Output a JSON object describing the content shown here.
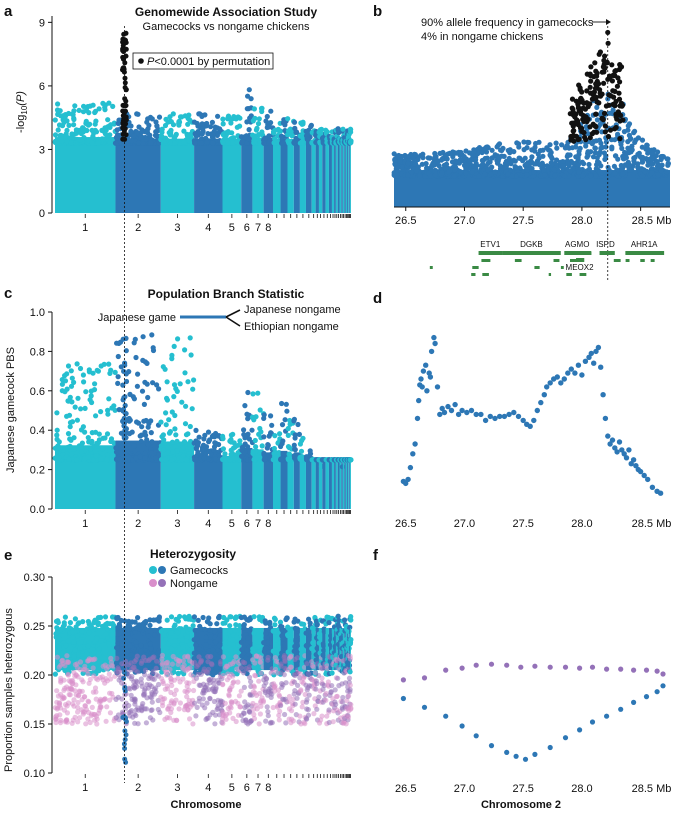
{
  "figure": {
    "panel_labels": [
      "a",
      "b",
      "c",
      "d",
      "e",
      "f"
    ],
    "colors": {
      "gamecock_dark": "#2d77b5",
      "gamecock_light": "#25bfd0",
      "nongame_pink": "#d98fcb",
      "nongame_purple": "#9471b8",
      "sig": "#111111",
      "gene": "#3a8a44"
    }
  },
  "chart_data": [
    {
      "id": "a",
      "type": "scatter",
      "title": "Genomewide Association Study",
      "subtitle": "Gamecocks vs nongame chickens",
      "ylabel": "-log10(P)",
      "ylabel_parts": [
        "-log",
        "10",
        "(P)"
      ],
      "yticks": [
        0,
        3,
        6,
        9
      ],
      "ylim": [
        0,
        9.3
      ],
      "xticks": [
        "1",
        "2",
        "3",
        "4",
        "5",
        "6",
        "7",
        "8"
      ],
      "legend": "P<0.0001 by permutation",
      "legend_parts": [
        "P",
        "<0.0001 by permutation"
      ],
      "chromosome_peaks": [
        5.2,
        4.7,
        4.7,
        4.7,
        4.7,
        6.0,
        5.0,
        4.9,
        4.8,
        4.6,
        4.5,
        4.4,
        4.3,
        4.2,
        4.0
      ],
      "max_value": 8.5,
      "highlight_chromosome": "2"
    },
    {
      "id": "b",
      "type": "scatter",
      "annotation_lines": [
        "90% allele frequency in gamecocks",
        "4% in nongame chickens"
      ],
      "xticks": [
        26.5,
        27.0,
        27.5,
        28.0,
        28.5
      ],
      "xunit": "Mb",
      "xlim": [
        26.4,
        28.75
      ],
      "ylim": [
        0,
        9.3
      ],
      "peak_position": 28.22,
      "peak_value": 8.5,
      "genes": [
        "ETV1",
        "DGKB",
        "AGMO",
        "MEOX2",
        "ISPD",
        "AHR1A"
      ]
    },
    {
      "id": "c",
      "type": "scatter",
      "title": "Population Branch Statistic",
      "ylabel": "Japanese gamecock PBS",
      "yticks": [
        0.0,
        0.2,
        0.4,
        0.6,
        0.8,
        1.0
      ],
      "ylim": [
        0,
        1.0
      ],
      "xticks": [
        "1",
        "2",
        "3",
        "4",
        "5",
        "6",
        "7",
        "8"
      ],
      "tree_labels": [
        "Japanese game",
        "Japanese nongame",
        "Ethiopian nongame"
      ],
      "chromosome_peaks": [
        0.74,
        0.9,
        0.87,
        0.4,
        0.38,
        0.65,
        0.6,
        0.5,
        0.4,
        0.55,
        0.45,
        0.5,
        0.36,
        0.3,
        0.25
      ]
    },
    {
      "id": "d",
      "type": "scatter",
      "xticks": [
        26.5,
        27.0,
        27.5,
        28.0,
        28.5
      ],
      "xunit": "Mb",
      "xlim": [
        26.4,
        28.75
      ],
      "ylim": [
        0,
        1.0
      ],
      "points": [
        [
          26.48,
          0.14
        ],
        [
          26.5,
          0.13
        ],
        [
          26.52,
          0.15
        ],
        [
          26.54,
          0.21
        ],
        [
          26.56,
          0.28
        ],
        [
          26.58,
          0.33
        ],
        [
          26.6,
          0.46
        ],
        [
          26.61,
          0.55
        ],
        [
          26.62,
          0.63
        ],
        [
          26.63,
          0.66
        ],
        [
          26.64,
          0.62
        ],
        [
          26.65,
          0.7
        ],
        [
          26.67,
          0.73
        ],
        [
          26.68,
          0.6
        ],
        [
          26.7,
          0.69
        ],
        [
          26.71,
          0.67
        ],
        [
          26.72,
          0.8
        ],
        [
          26.74,
          0.87
        ],
        [
          26.75,
          0.84
        ],
        [
          26.77,
          0.62
        ],
        [
          26.79,
          0.48
        ],
        [
          26.81,
          0.51
        ],
        [
          26.83,
          0.49
        ],
        [
          26.86,
          0.52
        ],
        [
          26.89,
          0.5
        ],
        [
          26.92,
          0.53
        ],
        [
          26.95,
          0.48
        ],
        [
          26.98,
          0.5
        ],
        [
          27.02,
          0.49
        ],
        [
          27.06,
          0.5
        ],
        [
          27.1,
          0.48
        ],
        [
          27.14,
          0.48
        ],
        [
          27.18,
          0.45
        ],
        [
          27.22,
          0.47
        ],
        [
          27.26,
          0.46
        ],
        [
          27.3,
          0.47
        ],
        [
          27.34,
          0.47
        ],
        [
          27.38,
          0.48
        ],
        [
          27.42,
          0.49
        ],
        [
          27.46,
          0.47
        ],
        [
          27.5,
          0.45
        ],
        [
          27.53,
          0.43
        ],
        [
          27.56,
          0.42
        ],
        [
          27.59,
          0.45
        ],
        [
          27.62,
          0.5
        ],
        [
          27.65,
          0.54
        ],
        [
          27.68,
          0.58
        ],
        [
          27.7,
          0.62
        ],
        [
          27.73,
          0.64
        ],
        [
          27.76,
          0.66
        ],
        [
          27.79,
          0.67
        ],
        [
          27.82,
          0.64
        ],
        [
          27.85,
          0.66
        ],
        [
          27.88,
          0.69
        ],
        [
          27.91,
          0.71
        ],
        [
          27.94,
          0.69
        ],
        [
          27.97,
          0.73
        ],
        [
          28.0,
          0.68
        ],
        [
          28.03,
          0.75
        ],
        [
          28.06,
          0.77
        ],
        [
          28.08,
          0.79
        ],
        [
          28.1,
          0.74
        ],
        [
          28.12,
          0.8
        ],
        [
          28.14,
          0.82
        ],
        [
          28.16,
          0.72
        ],
        [
          28.18,
          0.58
        ],
        [
          28.2,
          0.46
        ],
        [
          28.22,
          0.37
        ],
        [
          28.24,
          0.33
        ],
        [
          28.26,
          0.35
        ],
        [
          28.28,
          0.31
        ],
        [
          28.3,
          0.29
        ],
        [
          28.32,
          0.34
        ],
        [
          28.34,
          0.3
        ],
        [
          28.36,
          0.28
        ],
        [
          28.38,
          0.26
        ],
        [
          28.4,
          0.3
        ],
        [
          28.42,
          0.23
        ],
        [
          28.44,
          0.25
        ],
        [
          28.46,
          0.22
        ],
        [
          28.48,
          0.2
        ],
        [
          28.5,
          0.19
        ],
        [
          28.53,
          0.17
        ],
        [
          28.56,
          0.15
        ],
        [
          28.6,
          0.11
        ],
        [
          28.64,
          0.09
        ],
        [
          28.67,
          0.08
        ]
      ]
    },
    {
      "id": "e",
      "type": "scatter",
      "title": "Heterozygosity",
      "legend": [
        "Gamecocks",
        "Nongame"
      ],
      "ylabel": "Proportion samples heterozygous",
      "xlabel": "Chromosome",
      "yticks": [
        0.1,
        0.15,
        0.2,
        0.25,
        0.3
      ],
      "ylim": [
        0.1,
        0.3
      ],
      "xticks": [
        "1",
        "2",
        "3",
        "4",
        "5",
        "6",
        "7",
        "8"
      ],
      "min_value": 0.11
    },
    {
      "id": "f",
      "type": "scatter",
      "xlabel": "Chromosome 2",
      "xticks": [
        26.5,
        27.0,
        27.5,
        28.0,
        28.5
      ],
      "xunit": "Mb",
      "xlim": [
        26.4,
        28.75
      ],
      "ylim": [
        0.1,
        0.3
      ],
      "series": [
        {
          "name": "Nongame",
          "points": [
            [
              26.48,
              0.195
            ],
            [
              26.66,
              0.197
            ],
            [
              26.84,
              0.205
            ],
            [
              26.98,
              0.207
            ],
            [
              27.1,
              0.21
            ],
            [
              27.23,
              0.211
            ],
            [
              27.36,
              0.21
            ],
            [
              27.48,
              0.208
            ],
            [
              27.6,
              0.209
            ],
            [
              27.73,
              0.208
            ],
            [
              27.86,
              0.208
            ],
            [
              27.98,
              0.207
            ],
            [
              28.09,
              0.208
            ],
            [
              28.21,
              0.206
            ],
            [
              28.33,
              0.206
            ],
            [
              28.44,
              0.205
            ],
            [
              28.55,
              0.205
            ],
            [
              28.64,
              0.204
            ],
            [
              28.69,
              0.201
            ]
          ]
        },
        {
          "name": "Gamecocks",
          "points": [
            [
              26.48,
              0.176
            ],
            [
              26.66,
              0.167
            ],
            [
              26.84,
              0.158
            ],
            [
              26.98,
              0.148
            ],
            [
              27.1,
              0.138
            ],
            [
              27.23,
              0.128
            ],
            [
              27.36,
              0.121
            ],
            [
              27.44,
              0.117
            ],
            [
              27.52,
              0.114
            ],
            [
              27.6,
              0.119
            ],
            [
              27.73,
              0.126
            ],
            [
              27.86,
              0.136
            ],
            [
              27.98,
              0.144
            ],
            [
              28.09,
              0.152
            ],
            [
              28.21,
              0.158
            ],
            [
              28.33,
              0.165
            ],
            [
              28.44,
              0.172
            ],
            [
              28.55,
              0.178
            ],
            [
              28.64,
              0.183
            ],
            [
              28.69,
              0.189
            ]
          ]
        }
      ]
    }
  ]
}
